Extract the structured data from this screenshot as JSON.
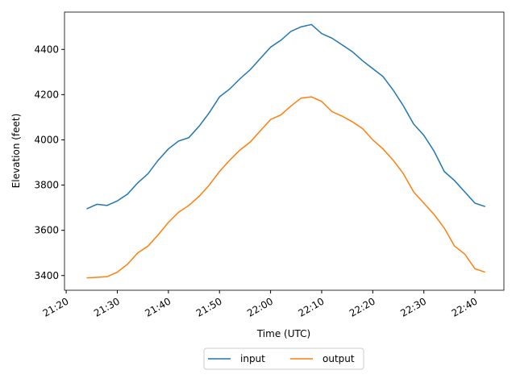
{
  "chart_data": {
    "type": "line",
    "xlabel": "Time (UTC)",
    "ylabel": "Elevation (feet)",
    "x": [
      "21:24",
      "21:26",
      "21:28",
      "21:30",
      "21:32",
      "21:34",
      "21:36",
      "21:38",
      "21:40",
      "21:42",
      "21:44",
      "21:46",
      "21:48",
      "21:50",
      "21:52",
      "21:54",
      "21:56",
      "21:58",
      "22:00",
      "22:02",
      "22:04",
      "22:06",
      "22:08",
      "22:10",
      "22:12",
      "22:14",
      "22:16",
      "22:18",
      "22:20",
      "22:22",
      "22:24",
      "22:26",
      "22:28",
      "22:30",
      "22:32",
      "22:34",
      "22:36",
      "22:38",
      "22:40",
      "22:42"
    ],
    "series": [
      {
        "name": "input",
        "color": "#1f77b4",
        "values": [
          3695,
          3715,
          3710,
          3730,
          3760,
          3810,
          3850,
          3910,
          3960,
          3995,
          4010,
          4060,
          4120,
          4190,
          4225,
          4270,
          4310,
          4360,
          4410,
          4440,
          4480,
          4500,
          4510,
          4470,
          4450,
          4420,
          4390,
          4350,
          4315,
          4280,
          4220,
          4150,
          4070,
          4020,
          3950,
          3860,
          3820,
          3770,
          3720,
          3705
        ]
      },
      {
        "name": "output",
        "color": "#ff7f0e",
        "values": [
          3390,
          3392,
          3395,
          3415,
          3450,
          3500,
          3530,
          3580,
          3635,
          3680,
          3710,
          3750,
          3800,
          3860,
          3910,
          3955,
          3990,
          4040,
          4090,
          4110,
          4150,
          4185,
          4190,
          4170,
          4125,
          4105,
          4080,
          4050,
          4000,
          3960,
          3910,
          3850,
          3770,
          3720,
          3670,
          3610,
          3530,
          3495,
          3430,
          3415
        ]
      }
    ],
    "xlim": [
      "21:19:40",
      "22:45:40"
    ],
    "xticks": [
      "21:20",
      "21:30",
      "21:40",
      "21:50",
      "22:00",
      "22:10",
      "22:20",
      "22:30",
      "22:40"
    ],
    "ylim": [
      3335,
      4565
    ],
    "yticks": [
      3400,
      3600,
      3800,
      4000,
      4200,
      4400
    ],
    "grid": false,
    "legend": "below"
  }
}
